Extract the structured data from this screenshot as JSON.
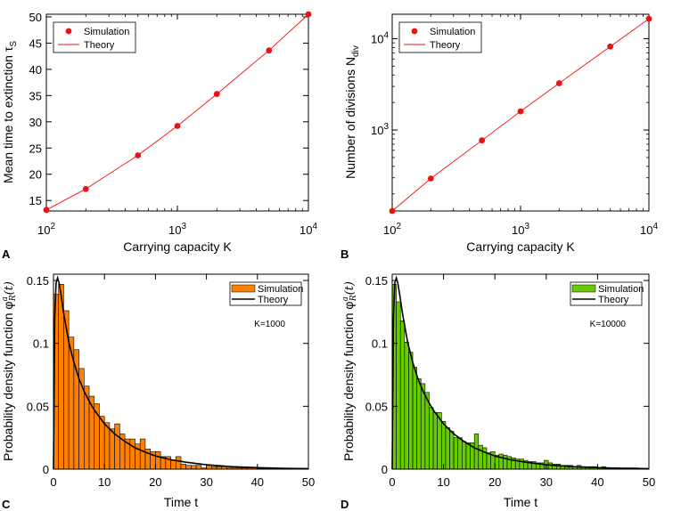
{
  "panel_labels": [
    "A",
    "B",
    "C",
    "D"
  ],
  "chart_data": [
    {
      "id": "A",
      "type": "scatter",
      "xscale": "log",
      "xlim": [
        100,
        10000
      ],
      "ylim": [
        13,
        50.5
      ],
      "xticks": [
        100,
        1000,
        10000
      ],
      "xtick_labels": [
        [
          "10",
          "2"
        ],
        [
          "10",
          "3"
        ],
        [
          "10",
          "4"
        ]
      ],
      "yticks": [
        15,
        20,
        25,
        30,
        35,
        40,
        45,
        50
      ],
      "ytick_labels": [
        "15",
        "20",
        "25",
        "30",
        "35",
        "40",
        "45",
        "50"
      ],
      "xlabel": "Carrying capacity K",
      "ylabel": "Mean time to extinction τ",
      "ylabel_sub": "S",
      "legend": {
        "position": "top-left",
        "entries": [
          "Simulation",
          "Theory"
        ]
      },
      "series": [
        {
          "name": "Simulation",
          "kind": "points",
          "color": "#ee1111",
          "x": [
            100,
            200,
            500,
            1000,
            2000,
            5000,
            10000
          ],
          "y": [
            13.2,
            17.2,
            23.6,
            29.2,
            35.3,
            43.6,
            50.5
          ]
        },
        {
          "name": "Theory",
          "kind": "line",
          "color": "#ee1111",
          "x": [
            100,
            200,
            500,
            1000,
            2000,
            5000,
            10000
          ],
          "y": [
            13.2,
            17.2,
            23.6,
            29.2,
            35.3,
            43.6,
            50.5
          ]
        }
      ]
    },
    {
      "id": "B",
      "type": "scatter",
      "xscale": "log",
      "yscale": "log",
      "xlim": [
        100,
        10000
      ],
      "ylim": [
        130,
        18500
      ],
      "xticks": [
        100,
        1000,
        10000
      ],
      "xtick_labels": [
        [
          "10",
          "2"
        ],
        [
          "10",
          "3"
        ],
        [
          "10",
          "4"
        ]
      ],
      "yticks": [
        1000,
        10000
      ],
      "ytick_labels": [
        [
          "10",
          "3"
        ],
        [
          "10",
          "4"
        ]
      ],
      "xlabel": "Carrying capacity K",
      "ylabel": "Number of divisions N",
      "ylabel_sub": "div",
      "legend": {
        "position": "top-left",
        "entries": [
          "Simulation",
          "Theory"
        ]
      },
      "series": [
        {
          "name": "Simulation",
          "kind": "points",
          "color": "#ee1111",
          "x": [
            100,
            200,
            500,
            1000,
            2000,
            5000,
            10000
          ],
          "y": [
            130,
            295,
            770,
            1600,
            3250,
            8200,
            16500
          ]
        },
        {
          "name": "Theory",
          "kind": "line",
          "color": "#ee1111",
          "x": [
            100,
            200,
            500,
            1000,
            2000,
            5000,
            10000
          ],
          "y": [
            130,
            295,
            770,
            1600,
            3250,
            8200,
            16500
          ]
        }
      ]
    },
    {
      "id": "C",
      "type": "bar",
      "annotation": "K=1000",
      "bin_width": 1,
      "bin_start": 0,
      "bar_color": "#ff8000",
      "xlim": [
        0,
        50
      ],
      "ylim": [
        0,
        0.155
      ],
      "xticks": [
        0,
        10,
        20,
        30,
        40,
        50
      ],
      "xtick_labels": [
        "0",
        "10",
        "20",
        "30",
        "40",
        "50"
      ],
      "yticks": [
        0,
        0.05,
        0.1,
        0.15
      ],
      "ytick_labels": [
        "0",
        "0.05",
        "0.1",
        "0.15"
      ],
      "xlabel": "Time t",
      "ylabel": "Probability density function φ",
      "legend": {
        "position": "top-right",
        "entries": [
          "Simulation",
          "Theory"
        ]
      },
      "values": [
        0.139,
        0.147,
        0.126,
        0.105,
        0.095,
        0.08,
        0.066,
        0.058,
        0.052,
        0.042,
        0.037,
        0.032,
        0.036,
        0.028,
        0.024,
        0.024,
        0.02,
        0.024,
        0.016,
        0.014,
        0.014,
        0.01,
        0.01,
        0.007,
        0.01,
        0.004,
        0.003,
        0.003,
        0.003,
        0.001,
        0.003,
        0.002,
        0.002,
        0.002,
        0.001,
        0.001,
        0.001,
        0.001,
        0.001,
        0.001,
        0.0005,
        0.0005,
        0.0005,
        0.0005,
        0.0005,
        0.0005,
        0.0005,
        0.0005,
        0.0005,
        0.0005
      ],
      "theory": {
        "x": [
          0,
          0.25,
          0.5,
          0.8,
          1.1,
          1.5,
          2,
          3,
          4,
          5,
          6,
          7,
          8,
          10,
          12,
          14,
          16,
          18,
          20,
          23,
          26,
          30,
          35,
          40,
          45,
          50
        ],
        "y": [
          0.0,
          0.12,
          0.148,
          0.152,
          0.148,
          0.138,
          0.124,
          0.101,
          0.085,
          0.072,
          0.062,
          0.054,
          0.047,
          0.036,
          0.028,
          0.022,
          0.017,
          0.0135,
          0.0105,
          0.0075,
          0.0055,
          0.0035,
          0.002,
          0.0012,
          0.0007,
          0.0004
        ]
      }
    },
    {
      "id": "D",
      "type": "bar",
      "annotation": "K=10000",
      "bin_width": 0.8,
      "bin_start": 0,
      "bar_color": "#66cc00",
      "xlim": [
        0,
        50
      ],
      "ylim": [
        0,
        0.155
      ],
      "xticks": [
        0,
        10,
        20,
        30,
        40,
        50
      ],
      "xtick_labels": [
        "0",
        "10",
        "20",
        "30",
        "40",
        "50"
      ],
      "yticks": [
        0,
        0.05,
        0.1,
        0.15
      ],
      "ytick_labels": [
        "0",
        "0.05",
        "0.1",
        "0.15"
      ],
      "xlabel": "Time t",
      "ylabel": "Probability density function φ",
      "legend": {
        "position": "top-right",
        "entries": [
          "Simulation",
          "Theory"
        ]
      },
      "values": [
        0.147,
        0.133,
        0.118,
        0.101,
        0.093,
        0.081,
        0.072,
        0.068,
        0.061,
        0.049,
        0.045,
        0.045,
        0.038,
        0.033,
        0.03,
        0.025,
        0.025,
        0.022,
        0.021,
        0.021,
        0.028,
        0.019,
        0.017,
        0.013,
        0.014,
        0.011,
        0.012,
        0.011,
        0.01,
        0.009,
        0.008,
        0.008,
        0.007,
        0.006,
        0.006,
        0.005,
        0.005,
        0.007,
        0.005,
        0.004,
        0.004,
        0.003,
        0.003,
        0.003,
        0.002,
        0.003,
        0.002,
        0.002,
        0.002,
        0.002,
        0.001,
        0.002,
        0.001,
        0.001,
        0.001,
        0.001,
        0.001,
        0.001,
        0.001,
        0.001,
        0.0005,
        0.0005
      ],
      "theory": {
        "x": [
          0,
          0.25,
          0.5,
          0.8,
          1.1,
          1.5,
          2,
          3,
          4,
          5,
          6,
          7,
          8,
          10,
          12,
          14,
          16,
          18,
          20,
          23,
          26,
          30,
          35,
          40,
          45,
          50
        ],
        "y": [
          0.0,
          0.12,
          0.148,
          0.152,
          0.148,
          0.138,
          0.124,
          0.101,
          0.085,
          0.072,
          0.062,
          0.054,
          0.047,
          0.036,
          0.028,
          0.022,
          0.017,
          0.0135,
          0.0105,
          0.0075,
          0.0055,
          0.0035,
          0.002,
          0.0012,
          0.0007,
          0.0004
        ]
      }
    }
  ]
}
